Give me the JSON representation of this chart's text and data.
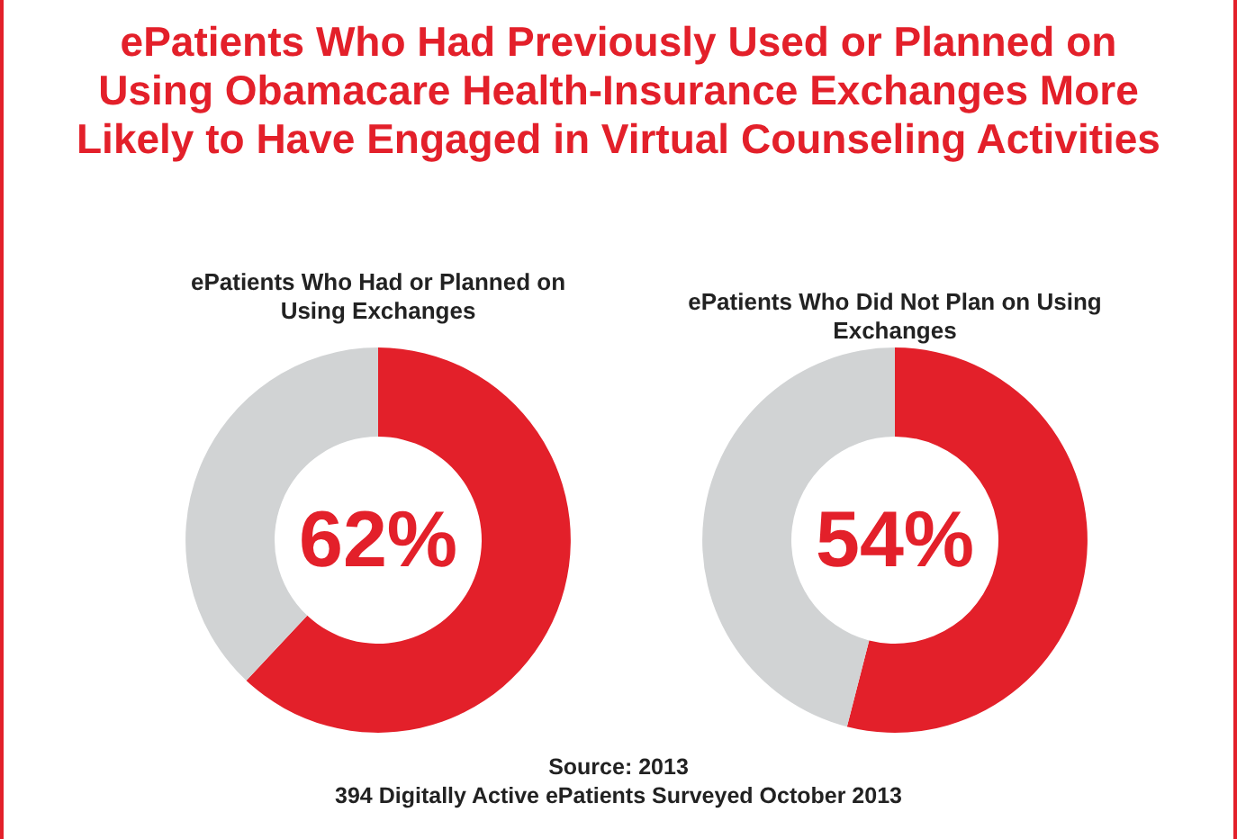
{
  "chart_data": [
    {
      "type": "donut",
      "title": "ePatients Who Had Previously Used or Planned on Using Obamacare Health-Insurance Exchanges More Likely to Have Engaged in Virtual Counseling Activities",
      "subtitle": "ePatients Who Had or Planned on Using Exchanges",
      "categories": [
        null,
        null
      ],
      "values": [
        62,
        38
      ],
      "colors": [
        "#e3202a",
        "#d1d3d4"
      ],
      "value_labels": [
        "62%",
        null
      ]
    },
    {
      "type": "donut",
      "subtitle": "ePatients Who Did Not Plan on Using Exchanges",
      "categories": [
        null,
        null
      ],
      "values": [
        54,
        46
      ],
      "colors": [
        "#e3202a",
        "#d1d3d4"
      ],
      "value_labels": [
        "54%",
        null
      ],
      "annotations": [
        "Source: 2013",
        "394 Digitally Active ePatients Surveyed October 2013"
      ]
    }
  ]
}
